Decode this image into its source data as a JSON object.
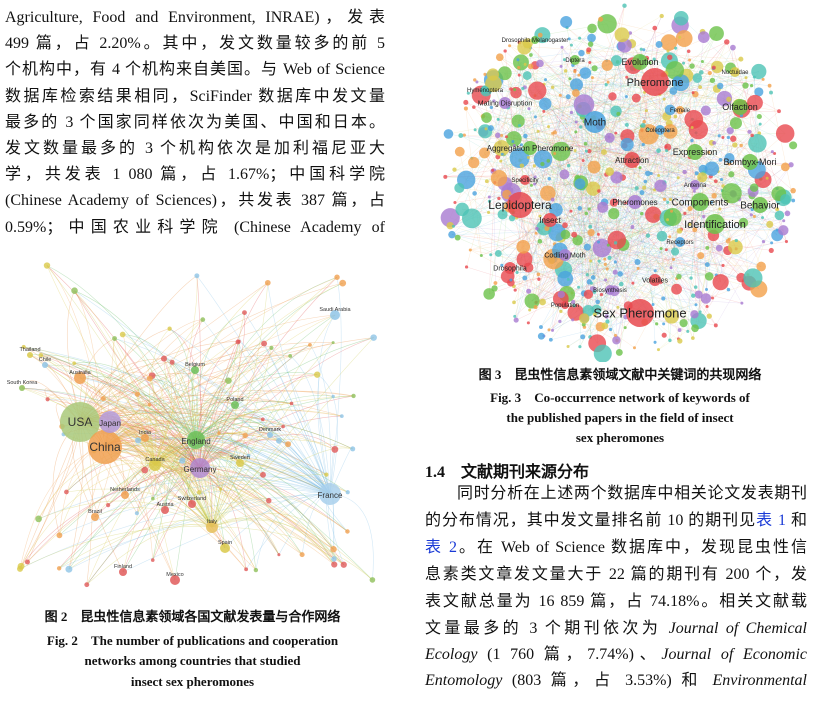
{
  "left_column": {
    "paragraph": {
      "lines": [
        "Agriculture, Food and Environment, INRAE)，发表",
        "499 篇，占 2.20%。其中，发文数量较多的前 5",
        "个机构中，有 4 个机构来自美国。与 Web of Science",
        "数据库检索结果相同，SciFinder 数据库中发文量",
        "最多的 3 个国家同样依次为美国、中国和日本。",
        "发文数量最多的 3 个机构依次是加利福尼亚大",
        "学，共发表 1 080 篇，占 1.67%；中国科学院",
        "(Chinese Academy of Sciences)，共发表 387 篇，占",
        "0.59%；中国农业科学院 (Chinese Academy of"
      ]
    },
    "figure_2": {
      "labels": [
        "USA",
        "China",
        "Japan",
        "England",
        "Germany",
        "France",
        "Australia",
        "Canada",
        "Italy",
        "Mexico",
        "Spain",
        "Finland",
        "South Korea",
        "Thailand",
        "Belgium",
        "India",
        "Netherlands",
        "Switzerland",
        "Sweden",
        "Saudi Arabia",
        "Brazil",
        "Poland",
        "Austria",
        "Denmark",
        "Chile"
      ],
      "caption_zh": {
        "label": "图 2",
        "text": "昆虫性信息素领域各国文献发表量与合作网络"
      },
      "caption_en": {
        "label": "Fig. 2",
        "lines": [
          "The number of publications and cooperation",
          "networks among countries that studied",
          "insect sex pheromones"
        ]
      }
    }
  },
  "right_column": {
    "figure_3": {
      "labels": [
        "Sex Pheromone",
        "Lepidoptera",
        "Pheromone",
        "Moth",
        "Identification",
        "Behavior",
        "Components",
        "Evolution",
        "Olfaction",
        "Bombyx-Mori",
        "Expression",
        "Attraction",
        "Insect",
        "Aggregation Pheromone",
        "Mating Disruption",
        "Pheromones",
        "Volatiles",
        "Codling Moth",
        "Drosophila",
        "Noctuidae",
        "Receptors",
        "Specificity",
        "Coleoptera",
        "Diptera",
        "Antenna",
        "Biosynthesis",
        "Population",
        "Hymenoptera",
        "Drosophila Melanogaster",
        "Female"
      ],
      "caption_zh": {
        "label": "图 3",
        "text": "昆虫性信息素领域文献中关键词的共现网络"
      },
      "caption_en": {
        "label": "Fig. 3",
        "lines": [
          "Co-occurrence network of keywords of",
          "the published papers in the field of insect",
          "sex pheromones"
        ]
      }
    },
    "section": {
      "number": "1.4",
      "title": "文献期刊来源分布"
    },
    "paragraph": {
      "lines": [
        [
          "同时分析在上述两个数据库中相关论文发表期刊"
        ],
        [
          "的分布情况，其中发文量排名前 10 的期刊见",
          "表 1",
          " 和"
        ],
        [
          "表 2",
          "。在 Web of Science 数据库中，发现昆虫性信"
        ],
        [
          "息素类文章发文量大于 22 篇的期刊有 200 个，发"
        ],
        [
          "表文献总量为 16 859 篇，占 74.18%。相关文献载"
        ],
        [
          "文量最多的 3 个期刊依次为 ",
          "Journal of Chemical"
        ],
        [
          "Ecology",
          " (1 760 篇，7.74%)、",
          "Journal of Economic"
        ],
        [
          "Entomology",
          " (803 篇，占 3.53%) 和 ",
          "Environmental"
        ]
      ]
    }
  }
}
